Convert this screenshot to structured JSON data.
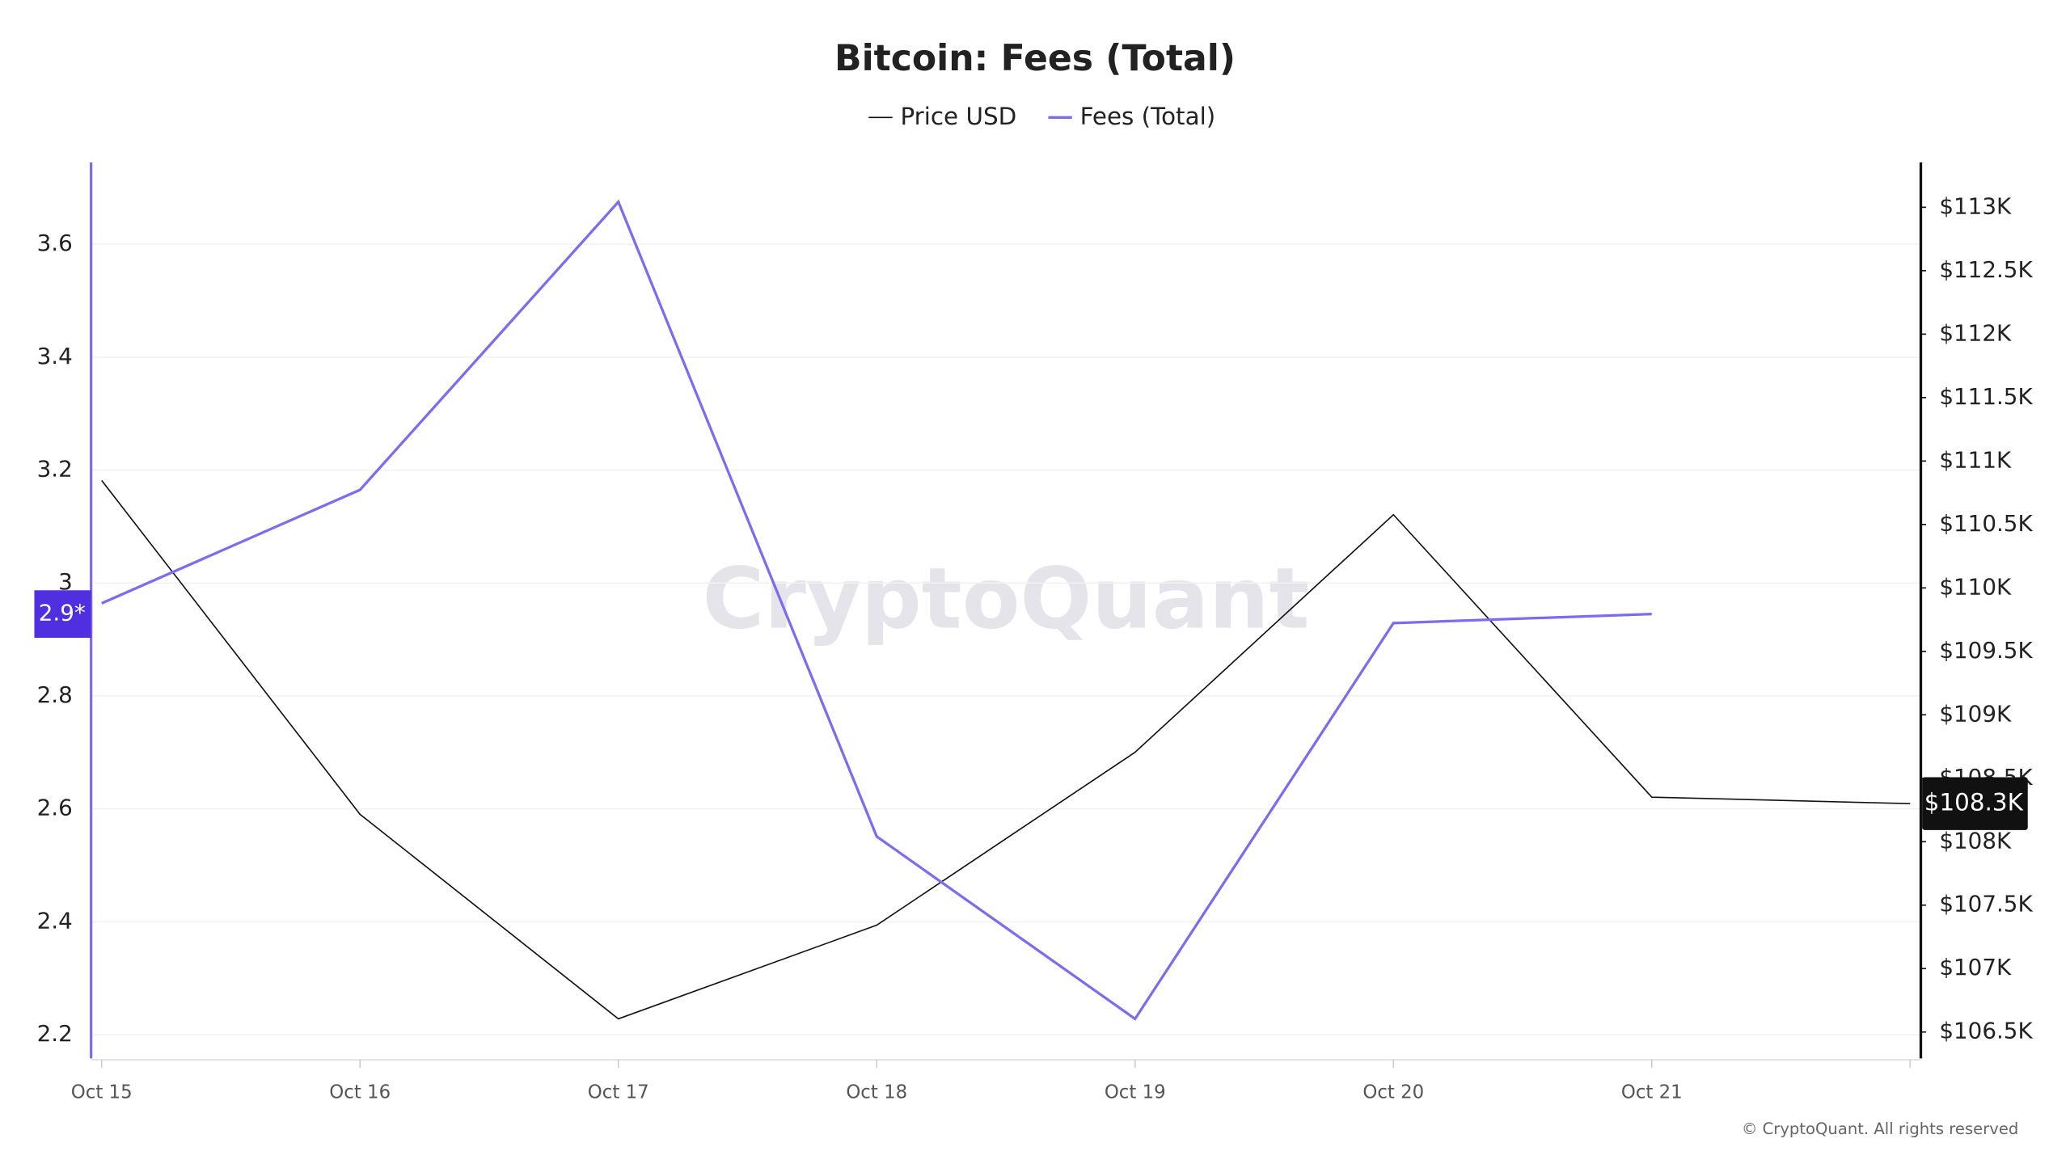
{
  "chart_data": {
    "type": "line",
    "title": "Bitcoin: Fees (Total)",
    "watermark": "CryptoQuant",
    "copyright": "© CryptoQuant. All rights reserved",
    "categories": [
      "Oct 15",
      "Oct 16",
      "Oct 17",
      "Oct 18",
      "Oct 19",
      "Oct 20",
      "Oct 21",
      null
    ],
    "series": [
      {
        "name": "Price USD",
        "color": "#111111",
        "axis": "y2",
        "values": [
          110847,
          108216,
          106604,
          107342,
          108705,
          110577,
          108351,
          108300
        ],
        "value_labels": [
          null,
          null,
          null,
          null,
          null,
          null,
          null,
          "$108.3K"
        ]
      },
      {
        "name": "Fees (Total)",
        "color": "#7b6cf0",
        "values": [
          2.964,
          3.165,
          3.675,
          2.551,
          2.228,
          2.929,
          2.945,
          null
        ],
        "value_labels": [
          null,
          null,
          null,
          null,
          null,
          null,
          "2.9*",
          null
        ]
      }
    ],
    "ylim": [
      2.158,
      3.745
    ],
    "yticks": [
      2.2,
      2.4,
      2.6,
      2.8,
      3,
      3.2,
      3.4,
      3.6
    ],
    "y2lim": [
      106292,
      113354
    ],
    "y2ticks": [
      {
        "value": 106500,
        "label": "$106.5K"
      },
      {
        "value": 107000,
        "label": "$107K"
      },
      {
        "value": 107500,
        "label": "$107.5K"
      },
      {
        "value": 108000,
        "label": "$108K"
      },
      {
        "value": 108500,
        "label": "$108.5K"
      },
      {
        "value": 109000,
        "label": "$109K"
      },
      {
        "value": 109500,
        "label": "$109.5K"
      },
      {
        "value": 110000,
        "label": "$110K"
      },
      {
        "value": 110500,
        "label": "$110.5K"
      },
      {
        "value": 111000,
        "label": "$111K"
      },
      {
        "value": 111500,
        "label": "$111.5K"
      },
      {
        "value": 112000,
        "label": "$112K"
      },
      {
        "value": 112500,
        "label": "$112.5K"
      },
      {
        "value": 113000,
        "label": "$113K"
      }
    ],
    "grid": true
  }
}
